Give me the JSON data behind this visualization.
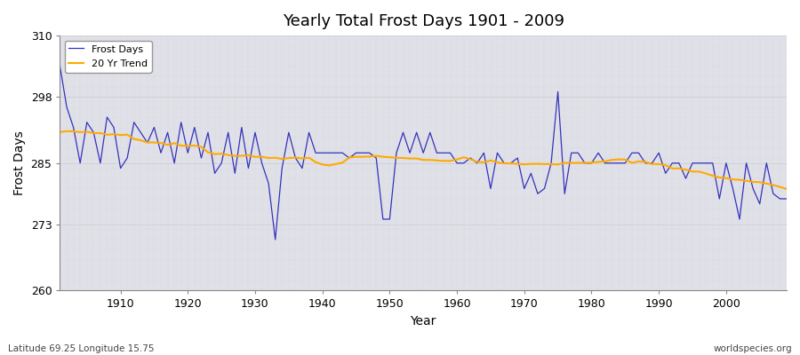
{
  "title": "Yearly Total Frost Days 1901 - 2009",
  "xlabel": "Year",
  "ylabel": "Frost Days",
  "subtitle_left": "Latitude 69.25 Longitude 15.75",
  "subtitle_right": "worldspecies.org",
  "legend_entries": [
    "Frost Days",
    "20 Yr Trend"
  ],
  "line_color_frost": "#3333bb",
  "line_color_trend": "#ffaa00",
  "background_color": "#e0e0e8",
  "ylim": [
    260,
    310
  ],
  "yticks": [
    260,
    273,
    285,
    298,
    310
  ],
  "xlim": [
    1901,
    2009
  ],
  "xticks": [
    1910,
    1920,
    1930,
    1940,
    1950,
    1960,
    1970,
    1980,
    1990,
    2000
  ],
  "years": [
    1901,
    1902,
    1903,
    1904,
    1905,
    1906,
    1907,
    1908,
    1909,
    1910,
    1911,
    1912,
    1913,
    1914,
    1915,
    1916,
    1917,
    1918,
    1919,
    1920,
    1921,
    1922,
    1923,
    1924,
    1925,
    1926,
    1927,
    1928,
    1929,
    1930,
    1931,
    1932,
    1933,
    1934,
    1935,
    1936,
    1937,
    1938,
    1939,
    1940,
    1941,
    1942,
    1943,
    1944,
    1945,
    1946,
    1947,
    1948,
    1949,
    1950,
    1951,
    1952,
    1953,
    1954,
    1955,
    1956,
    1957,
    1958,
    1959,
    1960,
    1961,
    1962,
    1963,
    1964,
    1965,
    1966,
    1967,
    1968,
    1969,
    1970,
    1971,
    1972,
    1973,
    1974,
    1975,
    1976,
    1977,
    1978,
    1979,
    1980,
    1981,
    1982,
    1983,
    1984,
    1985,
    1986,
    1987,
    1988,
    1989,
    1990,
    1991,
    1992,
    1993,
    1994,
    1995,
    1996,
    1997,
    1998,
    1999,
    2000,
    2001,
    2002,
    2003,
    2004,
    2005,
    2006,
    2007,
    2008,
    2009
  ],
  "frost_days": [
    304,
    296,
    292,
    285,
    293,
    291,
    285,
    294,
    292,
    284,
    286,
    293,
    291,
    289,
    292,
    287,
    291,
    285,
    293,
    287,
    292,
    286,
    291,
    283,
    285,
    291,
    283,
    292,
    284,
    291,
    285,
    281,
    270,
    284,
    291,
    286,
    284,
    291,
    287,
    287,
    287,
    287,
    287,
    286,
    287,
    287,
    287,
    286,
    274,
    274,
    287,
    291,
    287,
    291,
    287,
    291,
    287,
    287,
    287,
    285,
    285,
    286,
    285,
    287,
    280,
    287,
    285,
    285,
    286,
    280,
    283,
    279,
    280,
    285,
    299,
    279,
    287,
    287,
    285,
    285,
    287,
    285,
    285,
    285,
    285,
    287,
    287,
    285,
    285,
    287,
    283,
    285,
    285,
    282,
    285,
    285,
    285,
    285,
    278,
    285,
    280,
    274,
    285,
    280,
    277,
    285,
    279,
    278,
    278
  ]
}
